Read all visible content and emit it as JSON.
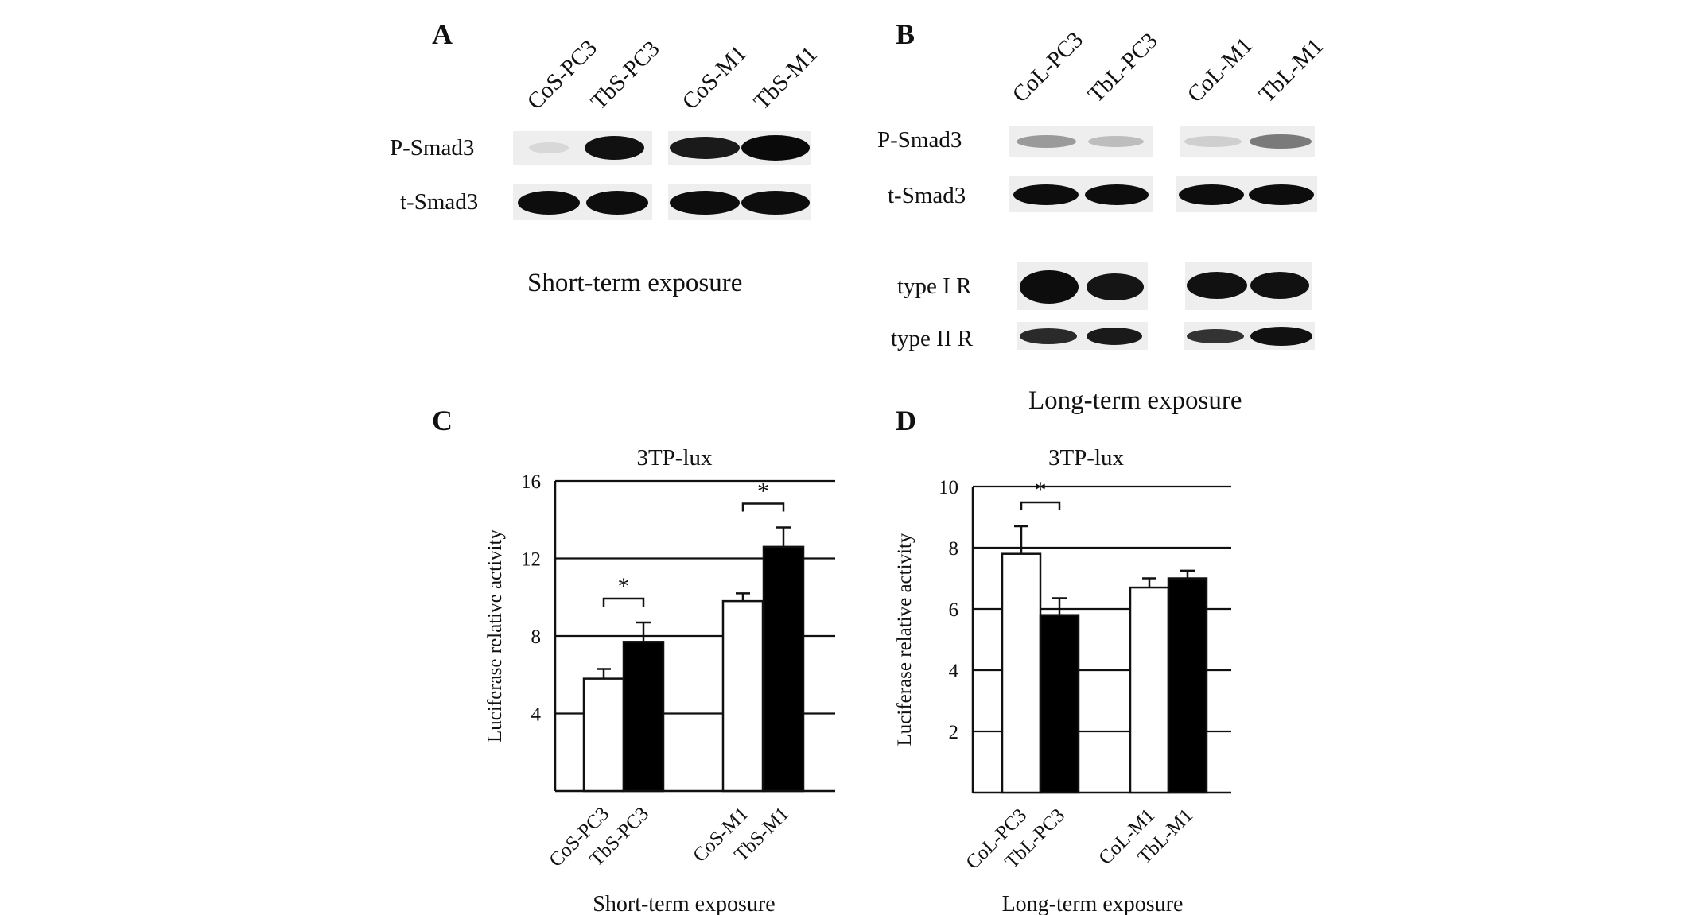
{
  "panels": {
    "a": {
      "letter": "A",
      "lanes": [
        "CoS-PC3",
        "TbS-PC3",
        "CoS-M1",
        "TbS-M1"
      ],
      "rows": [
        "P-Smad3",
        "t-Smad3"
      ],
      "caption": "Short-term exposure"
    },
    "b": {
      "letter": "B",
      "lanes": [
        "CoL-PC3",
        "TbL-PC3",
        "CoL-M1",
        "TbL-M1"
      ],
      "rows": [
        "P-Smad3",
        "t-Smad3",
        "type I R",
        "type II R"
      ],
      "caption": "Long-term exposure"
    },
    "c": {
      "letter": "C"
    },
    "d": {
      "letter": "D"
    }
  },
  "chart_data": [
    {
      "type": "bar",
      "title": "3TP-lux",
      "ylabel": "Luciferase relative activity",
      "xlabel": "Short-term exposure",
      "categories": [
        "CoS-PC3",
        "TbS-PC3",
        "CoS-M1",
        "TbS-M1"
      ],
      "values": [
        5.8,
        7.7,
        9.8,
        12.6
      ],
      "errors": [
        0.5,
        1.0,
        0.4,
        1.0
      ],
      "bar_fill": [
        "#ffffff",
        "#000000",
        "#ffffff",
        "#000000"
      ],
      "ylim": [
        0,
        16
      ],
      "yticks": [
        4,
        8,
        12,
        16
      ],
      "grid": true,
      "significance": [
        {
          "from": 0,
          "to": 1,
          "label": "*"
        },
        {
          "from": 2,
          "to": 3,
          "label": "*"
        }
      ]
    },
    {
      "type": "bar",
      "title": "3TP-lux",
      "ylabel": "Luciferase relative activity",
      "xlabel": "Long-term exposure",
      "categories": [
        "CoL-PC3",
        "TbL-PC3",
        "CoL-M1",
        "TbL-M1"
      ],
      "values": [
        7.8,
        5.8,
        6.7,
        7.0
      ],
      "errors": [
        0.9,
        0.55,
        0.3,
        0.25
      ],
      "bar_fill": [
        "#ffffff",
        "#000000",
        "#ffffff",
        "#000000"
      ],
      "ylim": [
        0,
        10
      ],
      "yticks": [
        2,
        4,
        6,
        8,
        10
      ],
      "grid": true,
      "significance": [
        {
          "from": 0,
          "to": 1,
          "label": "*"
        }
      ]
    }
  ]
}
